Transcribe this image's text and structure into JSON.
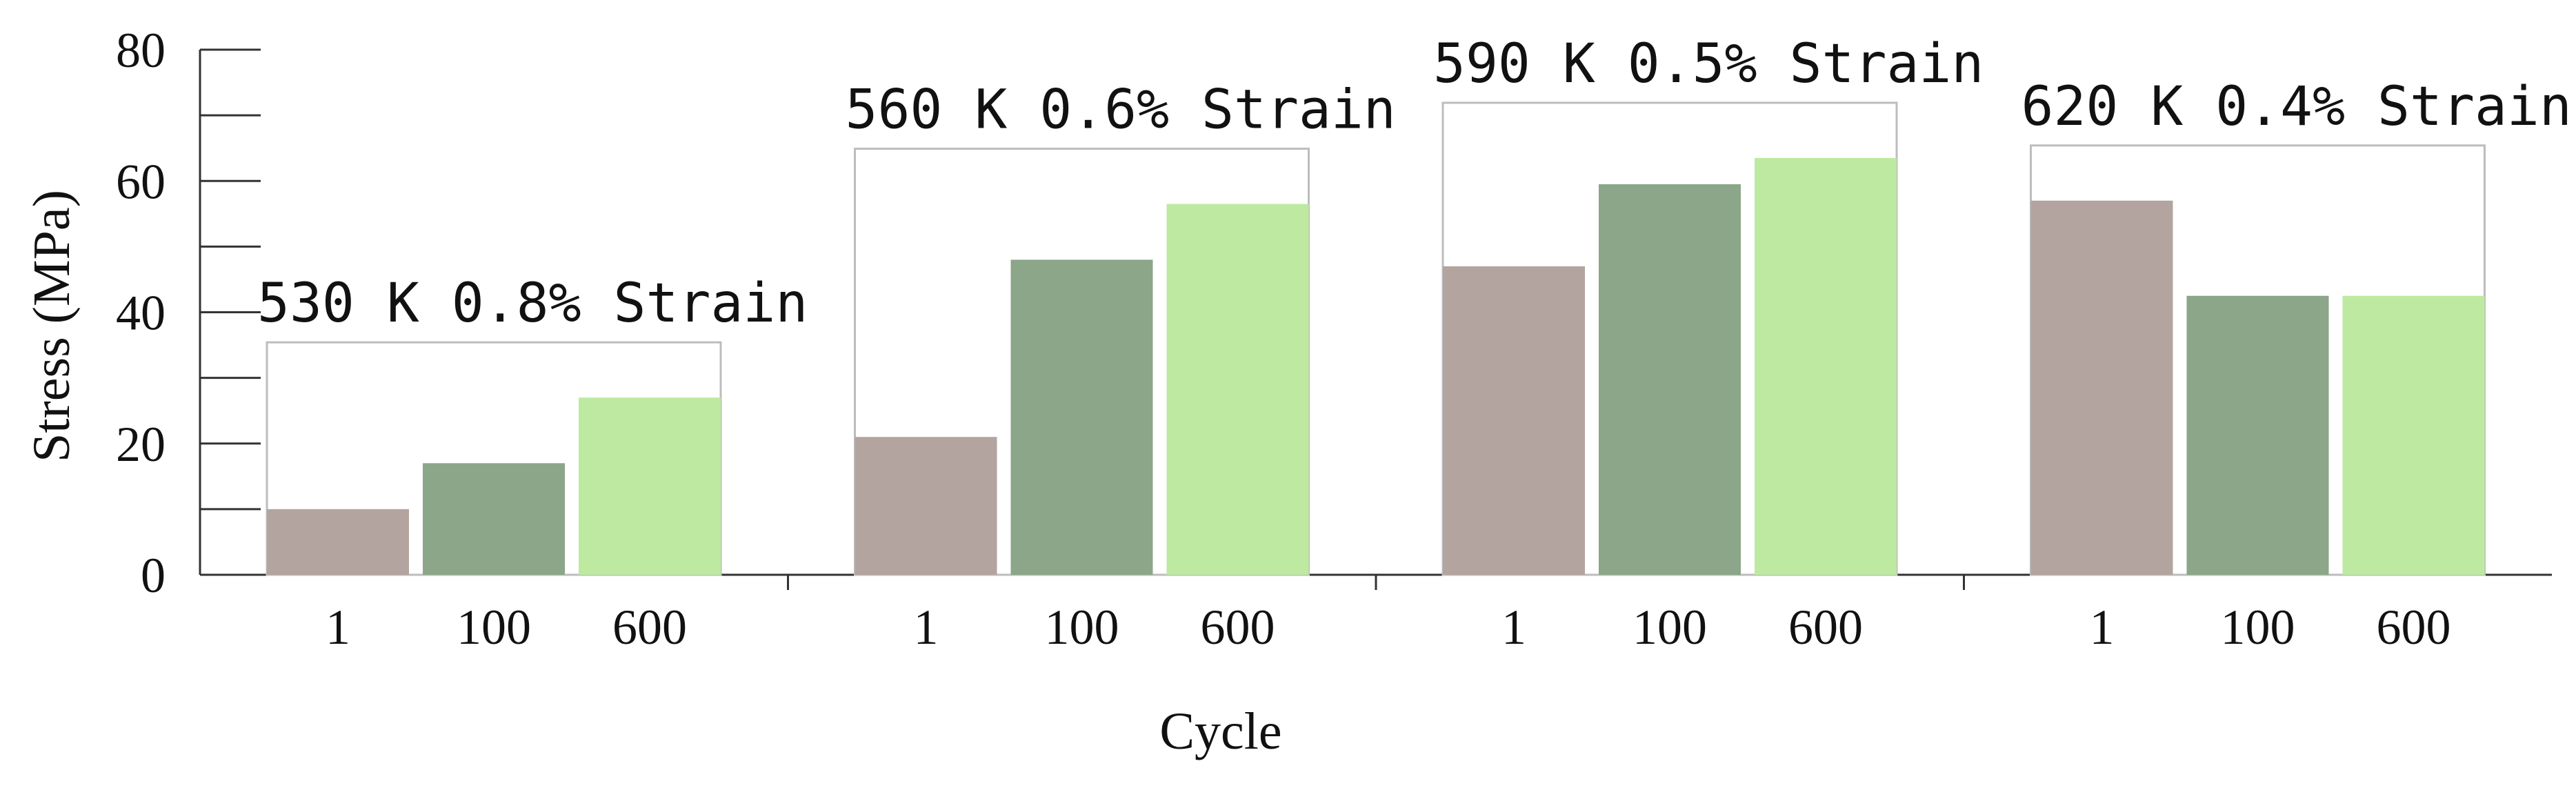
{
  "chart_data": {
    "type": "bar",
    "xlabel": "Cycle",
    "ylabel": "Stress (MPa)",
    "ylim": [
      0,
      80
    ],
    "yticks": [
      0,
      20,
      40,
      60,
      80
    ],
    "grid": false,
    "cycles": [
      "1",
      "100",
      "600"
    ],
    "colors": [
      "#b3a49f",
      "#8ba688",
      "#bdeaa0"
    ],
    "groups": [
      {
        "title": "530 K 0.8% Strain",
        "values": [
          10,
          17,
          27
        ]
      },
      {
        "title": "560 K 0.6% Strain",
        "values": [
          21,
          48,
          56.5
        ]
      },
      {
        "title": "590 K 0.5% Strain",
        "values": [
          47,
          59.5,
          63.5
        ]
      },
      {
        "title": "620 K 0.4% Strain",
        "values": [
          57,
          42.5,
          42.5
        ]
      }
    ]
  }
}
